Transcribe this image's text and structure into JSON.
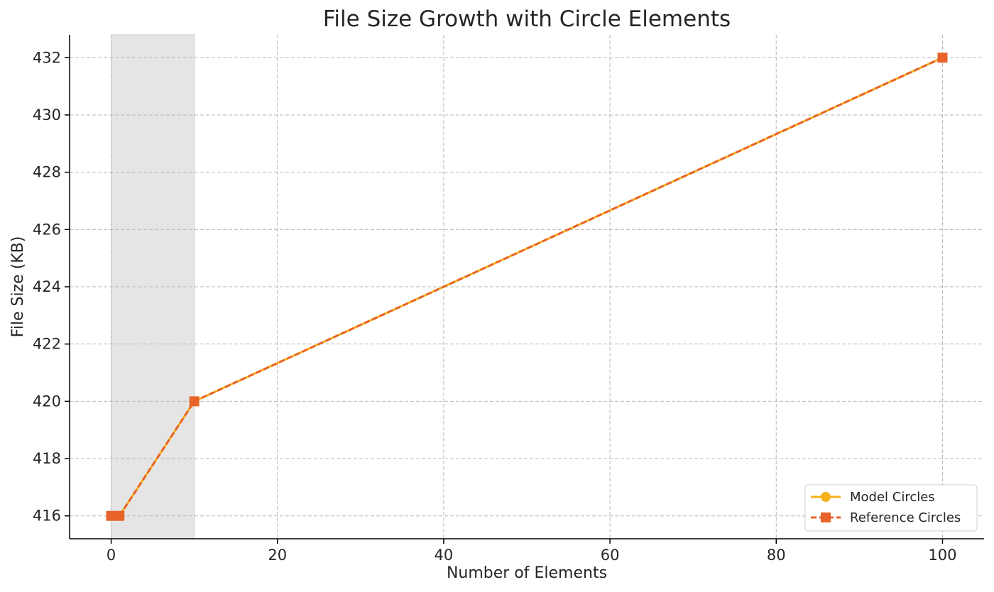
{
  "chart_data": {
    "type": "line",
    "title": "File Size Growth with Circle Elements",
    "xlabel": "Number of Elements",
    "ylabel": "File Size (KB)",
    "xlim": [
      -5,
      105
    ],
    "ylim": [
      415.2,
      432.8
    ],
    "xticks": [
      0,
      20,
      40,
      60,
      80,
      100
    ],
    "yticks": [
      416,
      418,
      420,
      422,
      424,
      426,
      428,
      430,
      432
    ],
    "shaded_region": {
      "x": [
        0,
        10
      ],
      "color": "#e5e5e5"
    },
    "grid": true,
    "legend_position": "lower-right",
    "series": [
      {
        "name": "Model Circles",
        "x": [
          0,
          1,
          10,
          100
        ],
        "y": [
          416,
          416,
          420,
          432
        ],
        "color": "#f5b21b",
        "marker": "circle",
        "line_style": "solid"
      },
      {
        "name": "Reference Circles",
        "x": [
          0,
          1,
          10,
          100
        ],
        "y": [
          416,
          416,
          420,
          432
        ],
        "color": "#e8632a",
        "marker": "square",
        "line_style": "dashed"
      }
    ]
  }
}
